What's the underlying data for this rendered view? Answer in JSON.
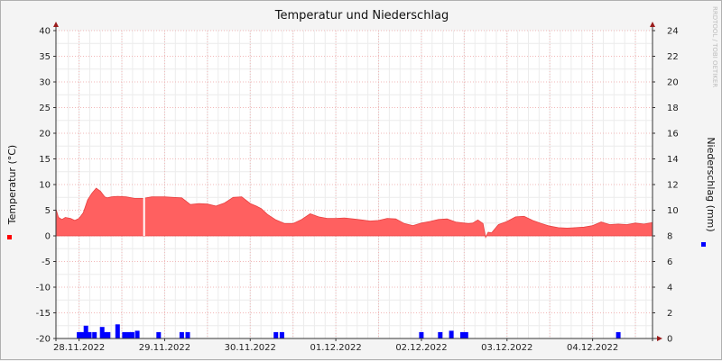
{
  "chart_data": {
    "type": "area+bar",
    "title": "Temperatur und Niederschlag",
    "left_axis": {
      "label": "Temperatur (°C)",
      "ylim": [
        -20,
        40
      ],
      "ticks": [
        40,
        35,
        30,
        25,
        20,
        15,
        10,
        5,
        0,
        -5,
        -10,
        -15,
        -20
      ],
      "tick_labels": [
        "40",
        "35",
        "30",
        "25",
        "20",
        "15",
        "10",
        "5",
        "0",
        "-5",
        "-10",
        "-15",
        "-20"
      ]
    },
    "right_axis": {
      "label": "Niederschlag (mm)",
      "ylim": [
        0,
        24
      ],
      "ticks": [
        24,
        22,
        20,
        18,
        16,
        14,
        12,
        10,
        8,
        6,
        4,
        2,
        0
      ],
      "tick_labels": [
        "24",
        "22",
        "20",
        "18",
        "16",
        "14",
        "12",
        "10",
        "8",
        "6",
        "4",
        "2",
        "0"
      ]
    },
    "x_axis": {
      "range_days": [
        -0.27,
        6.7
      ],
      "date_labels": [
        {
          "day": 0.0,
          "label": "28.11.2022"
        },
        {
          "day": 1.0,
          "label": "29.11.2022"
        },
        {
          "day": 2.0,
          "label": "30.11.2022"
        },
        {
          "day": 3.0,
          "label": "01.12.2022"
        },
        {
          "day": 4.0,
          "label": "02.12.2022"
        },
        {
          "day": 5.0,
          "label": "03.12.2022"
        },
        {
          "day": 6.0,
          "label": "04.12.2022"
        }
      ]
    },
    "series": [
      {
        "name": "Temperatur",
        "kind": "area",
        "axis": "left",
        "color": "#ff6060",
        "x_days": [
          -0.27,
          -0.24,
          -0.2,
          -0.16,
          -0.1,
          -0.05,
          0.0,
          0.05,
          0.1,
          0.15,
          0.2,
          0.25,
          0.3,
          0.33,
          0.38,
          0.45,
          0.55,
          0.65,
          0.75,
          0.85,
          1.0,
          1.1,
          1.2,
          1.3,
          1.4,
          1.5,
          1.6,
          1.7,
          1.8,
          1.9,
          2.0,
          2.07,
          2.13,
          2.2,
          2.3,
          2.4,
          2.5,
          2.6,
          2.7,
          2.8,
          2.9,
          3.0,
          3.1,
          3.2,
          3.3,
          3.4,
          3.5,
          3.6,
          3.7,
          3.8,
          3.9,
          4.0,
          4.1,
          4.2,
          4.3,
          4.4,
          4.5,
          4.55,
          4.6,
          4.66,
          4.72,
          4.75,
          4.78,
          4.82,
          4.9,
          5.0,
          5.1,
          5.2,
          5.3,
          5.4,
          5.5,
          5.6,
          5.7,
          5.8,
          5.9,
          6.0,
          6.1,
          6.2,
          6.3,
          6.4,
          6.5,
          6.6,
          6.7
        ],
        "values": [
          5.2,
          3.6,
          3.2,
          3.6,
          3.4,
          3.0,
          3.4,
          4.5,
          7.0,
          8.3,
          9.3,
          8.7,
          7.6,
          7.4,
          7.6,
          7.7,
          7.6,
          7.3,
          7.3,
          7.6,
          7.6,
          7.5,
          7.4,
          6.1,
          6.3,
          6.2,
          5.8,
          6.4,
          7.5,
          7.6,
          6.3,
          5.8,
          5.3,
          4.2,
          3.1,
          2.4,
          2.4,
          3.2,
          4.3,
          3.7,
          3.4,
          3.4,
          3.5,
          3.3,
          3.1,
          2.9,
          3.0,
          3.4,
          3.3,
          2.4,
          2.0,
          2.5,
          2.8,
          3.2,
          3.3,
          2.7,
          2.5,
          2.4,
          2.5,
          3.1,
          2.4,
          -0.3,
          0.7,
          0.6,
          2.2,
          2.8,
          3.7,
          3.8,
          3.0,
          2.4,
          1.9,
          1.6,
          1.5,
          1.6,
          1.7,
          2.0,
          2.7,
          2.2,
          2.3,
          2.2,
          2.5,
          2.3,
          2.6
        ]
      },
      {
        "name": "Niederschlag",
        "kind": "bar",
        "axis": "right",
        "color": "#0000ff",
        "x_days": [
          0.0,
          0.04,
          0.08,
          0.12,
          0.18,
          0.27,
          0.3,
          0.34,
          0.45,
          0.53,
          0.58,
          0.62,
          0.68,
          0.93,
          1.2,
          1.27,
          2.3,
          2.37,
          4.0,
          4.22,
          4.35,
          4.48,
          4.52,
          6.3
        ],
        "values": [
          0.5,
          0.5,
          1.0,
          0.5,
          0.5,
          0.9,
          0.5,
          0.5,
          1.1,
          0.5,
          0.5,
          0.5,
          0.6,
          0.5,
          0.5,
          0.5,
          0.5,
          0.5,
          0.5,
          0.5,
          0.6,
          0.5,
          0.5,
          0.5
        ]
      }
    ],
    "gap_marker_day": 0.76,
    "watermark": "RRDTOOL / TOBI OETIKER",
    "grid": true
  }
}
